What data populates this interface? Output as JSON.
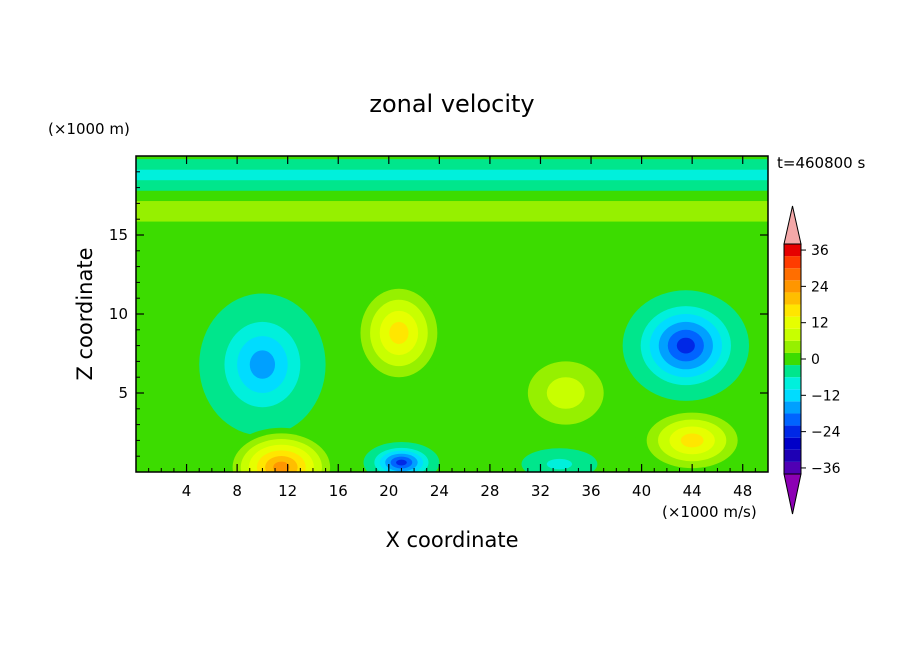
{
  "chart_data": {
    "type": "heatmap",
    "title": "zonal velocity",
    "xlabel": "X coordinate",
    "ylabel": "Z coordinate",
    "x_unit_label": "(×1000 m/s)",
    "y_unit_label": "(×1000 m)",
    "time_label": "t=460800 s",
    "xlim": [
      0,
      50
    ],
    "ylim": [
      0,
      20
    ],
    "x_ticks": [
      4,
      8,
      12,
      16,
      20,
      24,
      28,
      32,
      36,
      40,
      44,
      48
    ],
    "y_ticks": [
      5,
      10,
      15
    ],
    "colorbar": {
      "tick_labels": [
        "36",
        "24",
        "12",
        "0",
        "−12",
        "−24",
        "−36"
      ],
      "tick_values": [
        36,
        24,
        12,
        0,
        -12,
        -24,
        -36
      ],
      "levels": [
        {
          "value": 42,
          "color": "#f4a8a8"
        },
        {
          "value": 36,
          "color": "#e60000"
        },
        {
          "value": 32,
          "color": "#ff3c00"
        },
        {
          "value": 28,
          "color": "#ff6e00"
        },
        {
          "value": 24,
          "color": "#ff9600"
        },
        {
          "value": 20,
          "color": "#ffbe00"
        },
        {
          "value": 16,
          "color": "#ffe600"
        },
        {
          "value": 12,
          "color": "#e6ff00"
        },
        {
          "value": 8,
          "color": "#c8ff00"
        },
        {
          "value": 4,
          "color": "#96f000"
        },
        {
          "value": 0,
          "color": "#3cdc00"
        },
        {
          "value": -4,
          "color": "#00e68c"
        },
        {
          "value": -8,
          "color": "#00f0dc"
        },
        {
          "value": -12,
          "color": "#00dcff"
        },
        {
          "value": -16,
          "color": "#00a0ff"
        },
        {
          "value": -20,
          "color": "#0064ff"
        },
        {
          "value": -24,
          "color": "#0028e6"
        },
        {
          "value": -28,
          "color": "#0000c8"
        },
        {
          "value": -32,
          "color": "#1e00b4"
        },
        {
          "value": -36,
          "color": "#5000b4"
        },
        {
          "value": -42,
          "color": "#8c00b4"
        }
      ]
    },
    "field_features": [
      {
        "kind": "jet",
        "z_center": 16.5,
        "z_width": 1.3,
        "x_range": [
          0,
          50
        ],
        "value": 5
      },
      {
        "kind": "band",
        "z_center": 18.8,
        "z_width": 1.0,
        "x_range": [
          0,
          50
        ],
        "value": -8
      },
      {
        "kind": "blob",
        "x": 10,
        "z": 6.8,
        "rx": 5,
        "rz": 4.5,
        "value": -14
      },
      {
        "kind": "blob",
        "x": 20.8,
        "z": 8.8,
        "rx": 3.8,
        "rz": 3.5,
        "value": 14
      },
      {
        "kind": "blob",
        "x": 34,
        "z": 5.0,
        "rx": 4.5,
        "rz": 3,
        "value": 8
      },
      {
        "kind": "blob",
        "x": 43.5,
        "z": 8.0,
        "rx": 5,
        "rz": 3.5,
        "value": -22
      },
      {
        "kind": "blob",
        "x": 11.5,
        "z": 0.3,
        "rx": 4.5,
        "rz": 2.5,
        "value": 24
      },
      {
        "kind": "blob",
        "x": 21,
        "z": 0.6,
        "rx": 3,
        "rz": 1.3,
        "value": -22
      },
      {
        "kind": "blob",
        "x": 44,
        "z": 2.0,
        "rx": 4.5,
        "rz": 2.2,
        "value": 14
      },
      {
        "kind": "blob",
        "x": 33.5,
        "z": 0.5,
        "rx": 3,
        "rz": 1.0,
        "value": -8
      }
    ]
  }
}
